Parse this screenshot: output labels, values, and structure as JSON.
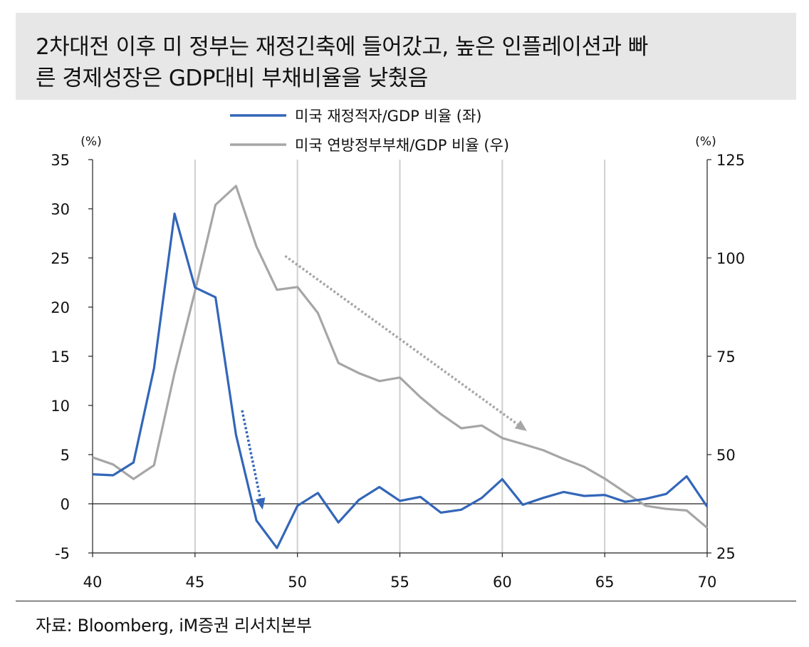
{
  "title": {
    "line1": "2차대전 이후 미 정부는 재정긴축에 들어갔고, 높은 인플레이션과 빠",
    "line2": "른 경제성장은 GDP대비 부채비율을 낮췄음"
  },
  "source": "자료: Bloomberg, iM증권 리서치본부",
  "chart_data": {
    "type": "line",
    "x": [
      40,
      41,
      42,
      43,
      44,
      45,
      46,
      47,
      48,
      49,
      50,
      51,
      52,
      53,
      54,
      55,
      56,
      57,
      58,
      59,
      60,
      61,
      62,
      63,
      64,
      65,
      66,
      67,
      68,
      69,
      70
    ],
    "series": [
      {
        "name": "미국 재정적자/GDP 비율 (좌)",
        "axis": "left",
        "color": "#3366b8",
        "values": [
          3.0,
          2.9,
          4.2,
          13.8,
          29.5,
          22.0,
          21.0,
          7.0,
          -1.7,
          -4.5,
          -0.2,
          1.1,
          -1.9,
          0.4,
          1.7,
          0.3,
          0.7,
          -0.9,
          -0.6,
          0.6,
          2.5,
          -0.1,
          0.6,
          1.2,
          0.8,
          0.9,
          0.2,
          0.5,
          1.0,
          2.8,
          -0.3
        ]
      },
      {
        "name": "미국 연방정부부채/GDP 비율 (우)",
        "axis": "right",
        "color": "#a6a6a6",
        "values": [
          49.3,
          47.5,
          43.8,
          47.3,
          70.8,
          91.5,
          113.5,
          118.3,
          102.9,
          91.9,
          92.6,
          86.0,
          73.3,
          70.7,
          68.7,
          69.6,
          64.6,
          60.3,
          56.7,
          57.4,
          54.2,
          52.7,
          51.1,
          48.9,
          46.9,
          43.9,
          40.4,
          37.0,
          36.2,
          35.8,
          31.4
        ]
      }
    ],
    "left_axis": {
      "unit": "(%)",
      "ylim": [
        -5,
        35
      ],
      "ticks": [
        35,
        30,
        25,
        20,
        15,
        10,
        5,
        0,
        -5
      ]
    },
    "right_axis": {
      "unit": "(%)",
      "ylim": [
        25,
        125
      ],
      "ticks": [
        125,
        100,
        75,
        50,
        25
      ]
    },
    "x_axis": {
      "xlim": [
        40,
        70
      ],
      "ticks": [
        40,
        45,
        50,
        55,
        60,
        65,
        70
      ]
    },
    "gridlines": "vertical",
    "legend_position": "top-center",
    "annotations": [
      {
        "type": "dotted-arrow",
        "color": "#3366b8",
        "from": [
          47.3,
          9.5
        ],
        "to": [
          48.3,
          -0.6
        ]
      },
      {
        "type": "dotted-arrow",
        "color": "#a6a6a6",
        "from": [
          49.4,
          100.5
        ],
        "to": [
          61.2,
          56.0
        ]
      }
    ]
  }
}
